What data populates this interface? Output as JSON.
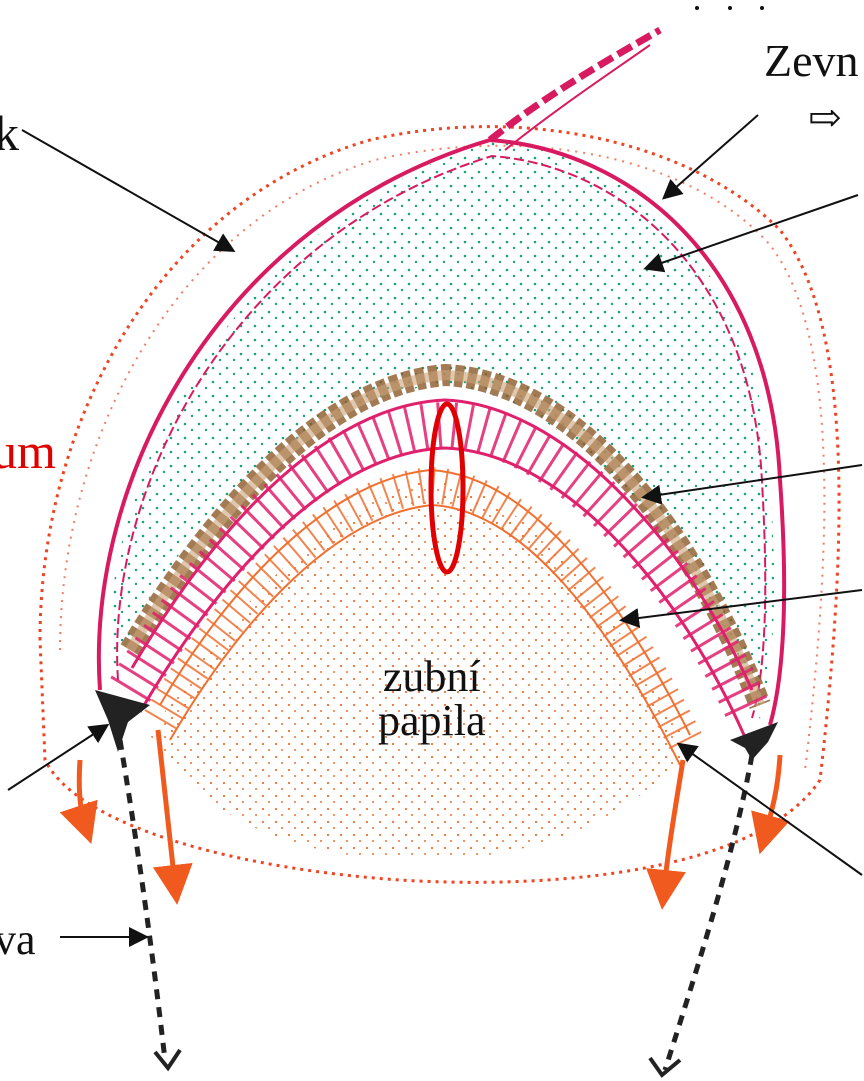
{
  "labels": {
    "top_right": "Zevn",
    "top_right_arrow": "⇨",
    "left_top": "k",
    "left_red": "um",
    "bottom_left": "va",
    "center_line1": "zubní",
    "center_line2": "papila"
  },
  "colors": {
    "outer_epithelium": "#d81b60",
    "stellate_reticulum": "#1aa37a",
    "stratum_intermedium": "#8b5a2b",
    "inner_epithelium": "#e0206c",
    "dental_papilla": "#f07030",
    "follicle": "#ee4422",
    "cervical_loop": "#222222",
    "highlight": "#e00000",
    "arrow_orange": "#f05a1e"
  },
  "icons": {
    "pointer_arrows": "arrow-icon",
    "growth_arrows": "downward-arrow-icon"
  }
}
